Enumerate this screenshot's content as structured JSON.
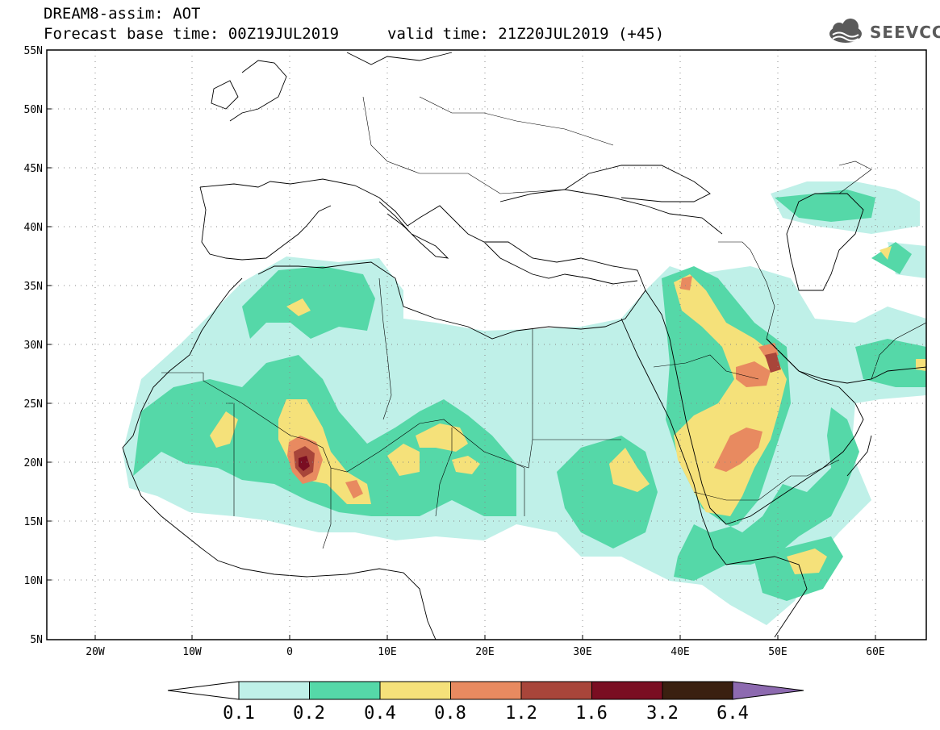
{
  "header": {
    "line1": "DREAM8-assim: AOT",
    "line2": "Forecast base time: 00Z19JUL2019",
    "line3": "valid time: 21Z20JUL2019 (+45)",
    "logo_text": "SEEVCCC"
  },
  "map": {
    "lon_range": [
      -25,
      65
    ],
    "lat_range": [
      5,
      55
    ],
    "lat_ticks": [
      "55N",
      "50N",
      "45N",
      "40N",
      "35N",
      "30N",
      "25N",
      "20N",
      "15N",
      "10N",
      "5N"
    ],
    "lon_ticks": [
      "20W",
      "10W",
      "0",
      "10E",
      "20E",
      "30E",
      "40E",
      "50E",
      "60E"
    ],
    "grid": "dotted"
  },
  "colorbar": {
    "labels": [
      "0.1",
      "0.2",
      "0.4",
      "0.8",
      "1.2",
      "1.6",
      "3.2",
      "6.4"
    ],
    "colors": [
      "#bff0e8",
      "#55d8a8",
      "#f5e17a",
      "#e88a60",
      "#a8453a",
      "#7a0e22",
      "#3a2010",
      "#8d6ab0"
    ],
    "under_color": "#ffffff",
    "over_color": "#8d6ab0"
  },
  "chart_data": {
    "type": "heatmap",
    "title": "DREAM8-assim: AOT",
    "levels": [
      0.1,
      0.2,
      0.4,
      0.8,
      1.2,
      1.6,
      3.2,
      6.4
    ],
    "max_region_lon_lat": [
      1,
      20.5
    ],
    "max_region_level": 1.6
  }
}
